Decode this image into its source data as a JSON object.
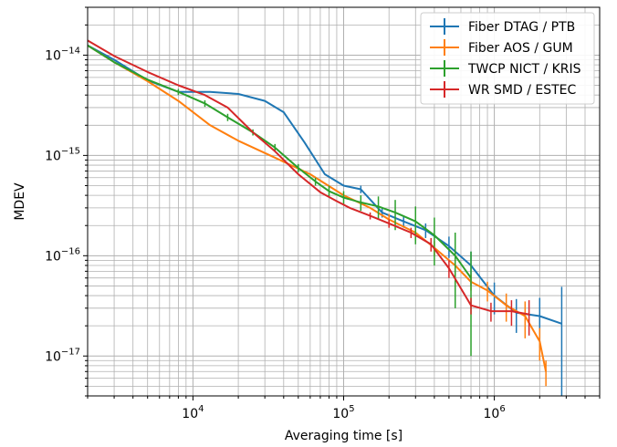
{
  "chart_data": {
    "type": "line",
    "xlabel": "Averaging time [s]",
    "ylabel": "MDEV",
    "xscale": "log",
    "yscale": "log",
    "xlim": [
      2000,
      5000000
    ],
    "ylim": [
      4e-18,
      3e-14
    ],
    "x_ticks": [
      {
        "value": 10000,
        "base": "10",
        "exp": "4"
      },
      {
        "value": 100000,
        "base": "10",
        "exp": "5"
      },
      {
        "value": 1000000,
        "base": "10",
        "exp": "6"
      }
    ],
    "y_ticks": [
      {
        "value": 1e-17,
        "base": "10",
        "exp": "−17"
      },
      {
        "value": 1e-16,
        "base": "10",
        "exp": "−16"
      },
      {
        "value": 1e-15,
        "base": "10",
        "exp": "−15"
      },
      {
        "value": 1e-14,
        "base": "10",
        "exp": "−14"
      }
    ],
    "grid": true,
    "legend_position": "top-right",
    "series": [
      {
        "name": "Fiber DTAG / PTB",
        "color": "#1f77b4",
        "x": [
          2000,
          3000,
          5000,
          8000,
          13000,
          20000,
          30000,
          40000,
          55000,
          75000,
          100000,
          130000,
          180000,
          250000,
          350000,
          500000,
          700000,
          1000000,
          1400000,
          2000000,
          2800000
        ],
        "y": [
          1.25e-14,
          9e-15,
          5.6e-15,
          4.3e-15,
          4.3e-15,
          4.1e-15,
          3.5e-15,
          2.7e-15,
          1.35e-15,
          6.5e-16,
          5e-16,
          4.6e-16,
          2.7e-16,
          2.2e-16,
          1.8e-16,
          1.25e-16,
          8e-17,
          4e-17,
          2.7e-17,
          2.5e-17,
          2.1e-17
        ],
        "err": [
          0,
          0,
          0,
          0,
          0,
          0,
          0,
          0,
          0,
          0,
          0,
          4e-17,
          3e-17,
          3e-17,
          3e-17,
          3e-17,
          3e-17,
          1.4e-17,
          1e-17,
          1.3e-17,
          2.8e-17
        ]
      },
      {
        "name": "Fiber AOS / GUM",
        "color": "#ff7f0e",
        "x": [
          2000,
          3000,
          5000,
          8000,
          13000,
          20000,
          35000,
          60000,
          100000,
          150000,
          200000,
          300000,
          400000,
          550000,
          700000,
          900000,
          1200000,
          1600000,
          2000000,
          2200000
        ],
        "y": [
          1.25e-14,
          8.5e-15,
          5.5e-15,
          3.5e-15,
          2e-15,
          1.4e-15,
          9.5e-16,
          6.5e-16,
          4e-16,
          3e-16,
          2.3e-16,
          1.7e-16,
          1.2e-16,
          8e-17,
          5.5e-17,
          4.5e-17,
          3.2e-17,
          2.5e-17,
          1.4e-17,
          7e-18
        ],
        "err": [
          0,
          0,
          0,
          0,
          0,
          0,
          0,
          0,
          0,
          0,
          3e-17,
          3e-17,
          2e-17,
          2e-17,
          1e-17,
          1e-17,
          1e-17,
          1e-17,
          5e-18,
          2e-18
        ]
      },
      {
        "name": "TWCP NICT / KRIS",
        "color": "#2ca02c",
        "x": [
          2000,
          3000,
          5000,
          8000,
          12000,
          17000,
          25000,
          35000,
          50000,
          65000,
          80000,
          100000,
          130000,
          170000,
          220000,
          300000,
          400000,
          550000,
          700000
        ],
        "y": [
          1.25e-14,
          8.5e-15,
          5.7e-15,
          4.3e-15,
          3.3e-15,
          2.4e-15,
          1.7e-15,
          1.2e-15,
          7.5e-16,
          5.5e-16,
          4.4e-16,
          3.8e-16,
          3.4e-16,
          3.1e-16,
          2.7e-16,
          2.2e-16,
          1.6e-16,
          1e-16,
          6e-17
        ],
        "err": [
          0,
          0,
          0,
          3e-16,
          2.5e-16,
          2e-16,
          1.2e-16,
          1e-16,
          7e-17,
          5e-17,
          6e-17,
          6e-17,
          6e-17,
          8e-17,
          9e-17,
          9e-17,
          8e-17,
          7e-17,
          5e-17
        ]
      },
      {
        "name": "WR SMD / ESTEC",
        "color": "#d62728",
        "x": [
          2000,
          3000,
          5000,
          8000,
          12000,
          17000,
          25000,
          35000,
          50000,
          70000,
          90000,
          110000,
          150000,
          200000,
          280000,
          380000,
          500000,
          700000,
          950000,
          1300000,
          1700000
        ],
        "y": [
          1.4e-14,
          9.8e-15,
          6.8e-15,
          5e-15,
          4e-15,
          3e-15,
          1.7e-15,
          1.1e-15,
          6.5e-16,
          4.3e-16,
          3.5e-16,
          3e-16,
          2.5e-16,
          2.1e-16,
          1.7e-16,
          1.3e-16,
          7.5e-17,
          3.2e-17,
          2.8e-17,
          2.8e-17,
          2.6e-17
        ],
        "err": [
          0,
          0,
          0,
          0,
          0,
          0,
          0,
          0,
          0,
          0,
          0,
          0,
          2e-17,
          2e-17,
          2e-17,
          2e-17,
          1.5e-17,
          6e-18,
          6e-18,
          8e-18,
          1e-17
        ]
      }
    ]
  }
}
